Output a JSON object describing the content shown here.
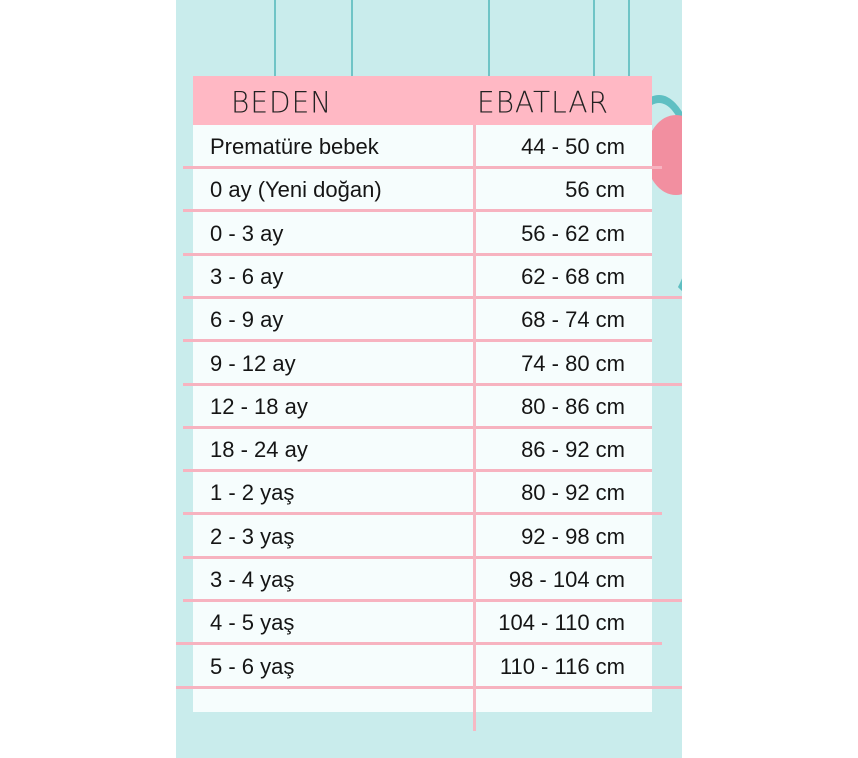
{
  "colors": {
    "background": "#c9ecec",
    "header": "#ffb8c4",
    "lines": "#f7b3c0",
    "card": "#f6fdfd"
  },
  "header": {
    "col1": "BEDEN",
    "col2": "EBATLAR"
  },
  "rows": [
    {
      "size": "Prematüre bebek",
      "measure": "44 - 50 cm"
    },
    {
      "size": "0 ay (Yeni doğan)",
      "measure": "56 cm"
    },
    {
      "size": "0 - 3 ay",
      "measure": "56 - 62 cm"
    },
    {
      "size": "3 - 6 ay",
      "measure": "62 - 68 cm"
    },
    {
      "size": "6 - 9 ay",
      "measure": "68 - 74 cm"
    },
    {
      "size": "9 - 12 ay",
      "measure": "74 - 80 cm"
    },
    {
      "size": "12 - 18 ay",
      "measure": "80 - 86 cm"
    },
    {
      "size": "18 - 24 ay",
      "measure": "86 - 92 cm"
    },
    {
      "size": "1 - 2 yaş",
      "measure": "80 - 92 cm"
    },
    {
      "size": "2 - 3 yaş",
      "measure": "92 - 98 cm"
    },
    {
      "size": "3 - 4 yaş",
      "measure": "98 - 104 cm"
    },
    {
      "size": "4 - 5 yaş",
      "measure": "104 - 110 cm"
    },
    {
      "size": "5 - 6 yaş",
      "measure": "110 - 116 cm"
    }
  ]
}
